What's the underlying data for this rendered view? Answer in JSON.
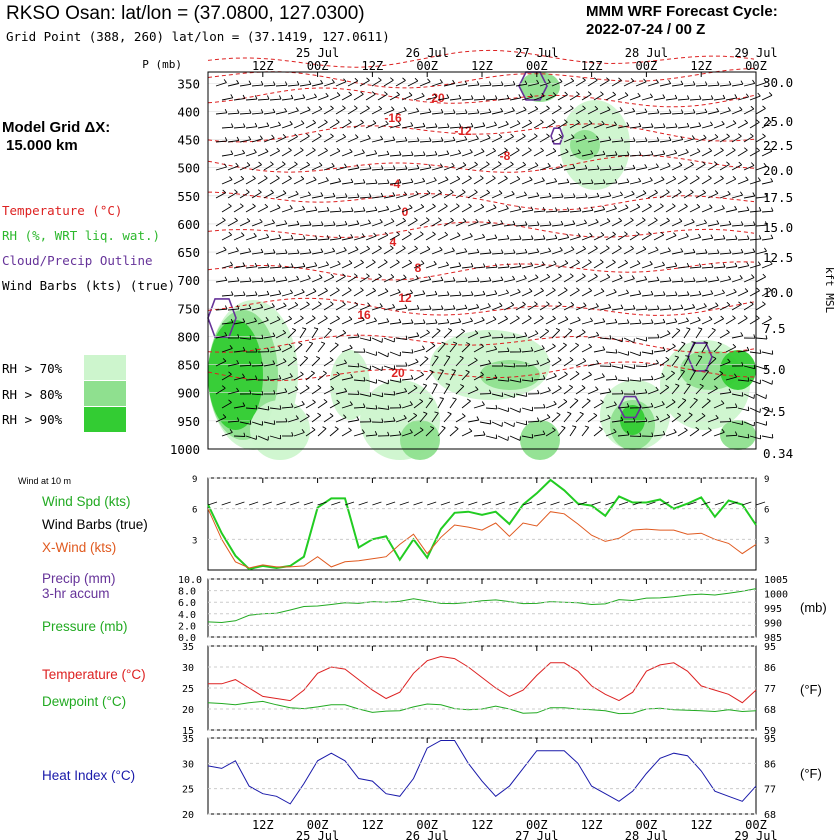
{
  "header": {
    "station": "RKSO Osan:",
    "latlon": "lat/lon = (37.0800, 127.0300)",
    "grid_point": "Grid Point (388, 260) lat/lon = (37.1419, 127.0611)",
    "cycle_title": "MMM WRF Forecast Cycle:",
    "cycle_time": "2022-07-24 / 00  Z"
  },
  "sidebar": {
    "grid_label": "Model Grid ΔX:",
    "grid_value": "15.000 km",
    "legend_temperature": "Temperature (°C)",
    "legend_rh": "RH (%, WRT liq. wat.)",
    "legend_cloud": "Cloud/Precip Outline",
    "legend_wind": "Wind Barbs (kts) (true)",
    "rh_levels": [
      {
        "label": "RH > 70%",
        "color": "#cdf5cd"
      },
      {
        "label": "RH > 80%",
        "color": "#8fe08f"
      },
      {
        "label": "RH > 90%",
        "color": "#33cc33"
      }
    ]
  },
  "colors": {
    "temperature": "#dd2222",
    "rh": "#2db82d",
    "cloud": "#663399",
    "wind_spd": "#22cc22",
    "x_wind": "#e05a20",
    "pressure": "#22aa22",
    "heat_index": "#1a1aaa",
    "dewpoint": "#22aa22"
  },
  "time_axis": {
    "ticks": [
      "12Z",
      "00Z",
      "12Z",
      "00Z",
      "12Z",
      "00Z",
      "12Z",
      "00Z",
      "12Z",
      "00Z"
    ],
    "dates": [
      "25 Jul",
      "26 Jul",
      "27 Jul",
      "28 Jul",
      "29 Jul"
    ]
  },
  "chart_data": [
    {
      "type": "heatmap",
      "name": "cross-section",
      "title": "",
      "ylabel_left": "P (mb)",
      "ylabel_right": "kft MSL",
      "pressure_ticks": [
        "350",
        "400",
        "450",
        "500",
        "550",
        "600",
        "650",
        "700",
        "750",
        "800",
        "850",
        "900",
        "950",
        "1000"
      ],
      "height_ticks": [
        "30.0",
        "25.0",
        "22.5",
        "20.0",
        "17.5",
        "15.0",
        "12.5",
        "10.0",
        "7.5",
        "5.0",
        "2.5",
        "0.34"
      ],
      "temperature_contour_labels": [
        "20",
        "16",
        "12",
        "8",
        "4",
        "0",
        "-4",
        "-8",
        "-12",
        "-16",
        "-20"
      ],
      "temperature_labels_shown": [
        "-20",
        "-16",
        "-12",
        "-8",
        "-4",
        "0",
        "4",
        "8",
        "12",
        "16",
        "20"
      ]
    },
    {
      "type": "line",
      "name": "wind",
      "header": "Wind at 10 m",
      "labels": {
        "wind_spd": "Wind Spd (kts)",
        "barbs": "Wind Barbs (true)",
        "x_wind": "X-Wind (kts)"
      },
      "yticks": [
        "9",
        "6",
        "3"
      ],
      "ylim": [
        0,
        9
      ],
      "x_hours": [
        0,
        3,
        6,
        9,
        12,
        15,
        18,
        21,
        24,
        27,
        30,
        33,
        36,
        39,
        42,
        45,
        48,
        51,
        54,
        57,
        60,
        63,
        66,
        69,
        72,
        75,
        78,
        81,
        84,
        87,
        90,
        93,
        96,
        99,
        102,
        105,
        108,
        111,
        114,
        117,
        120
      ],
      "series": [
        {
          "name": "Wind Spd (kts)",
          "values": [
            6.4,
            3.6,
            1.4,
            0.1,
            0.4,
            0.2,
            0.4,
            1.3,
            6.1,
            7.0,
            7.0,
            2.2,
            3.0,
            3.3,
            1.0,
            3.0,
            1.2,
            4.0,
            5.6,
            5.7,
            5.4,
            5.7,
            4.5,
            6.4,
            7.5,
            8.8,
            7.8,
            6.5,
            6.3,
            5.3,
            7.2,
            6.6,
            6.6,
            6.9,
            6.0,
            6.5,
            7.1,
            5.2,
            6.8,
            6.4,
            4.4
          ]
        },
        {
          "name": "X-Wind (kts)",
          "values": [
            6.0,
            3.0,
            0.8,
            0.2,
            0.5,
            0.3,
            0.3,
            0.4,
            1.3,
            0.3,
            0.8,
            0.9,
            1.1,
            1.3,
            2.5,
            3.5,
            1.6,
            3.2,
            4.4,
            4.2,
            3.9,
            4.6,
            3.3,
            4.6,
            4.3,
            5.7,
            5.5,
            4.5,
            3.4,
            2.8,
            3.1,
            3.9,
            4.0,
            3.9,
            3.9,
            3.5,
            3.6,
            3.0,
            2.6,
            1.6,
            2.5
          ]
        }
      ]
    },
    {
      "type": "line",
      "name": "pressure",
      "labels": {
        "precip": "Precip (mm)",
        "precip_sub": "3-hr accum",
        "pressure": "Pressure (mb)"
      },
      "yticks_left": [
        "10.0",
        "8.0",
        "6.0",
        "4.0",
        "2.0",
        "0.0"
      ],
      "yticks_right": [
        "1005",
        "1000",
        "995",
        "990",
        "985"
      ],
      "unit_right": "(mb)",
      "ylim": [
        985,
        1005
      ],
      "series": [
        {
          "name": "Pressure (mb)",
          "values": [
            990.2,
            990.0,
            990.6,
            992.5,
            993.0,
            993.2,
            994.3,
            995.5,
            995.7,
            996.2,
            996.8,
            996.6,
            997.2,
            997.0,
            997.3,
            998.2,
            997.4,
            996.6,
            996.5,
            996.9,
            997.5,
            997.8,
            997.2,
            996.5,
            996.6,
            997.2,
            997.0,
            996.8,
            996.2,
            996.4,
            997.9,
            997.6,
            998.4,
            998.5,
            998.9,
            999.5,
            999.8,
            999.5,
            1000.1,
            1000.8,
            1001.7
          ]
        }
      ]
    },
    {
      "type": "line",
      "name": "temperature",
      "labels": {
        "temperature": "Temperature (°C)",
        "dewpoint": "Dewpoint (°C)"
      },
      "yticks_left": [
        "35",
        "30",
        "25",
        "20",
        "15"
      ],
      "yticks_right": [
        "95",
        "86",
        "77",
        "68",
        "59"
      ],
      "unit_right": "(°F)",
      "ylim": [
        15,
        35
      ],
      "series": [
        {
          "name": "Temperature (°C)",
          "values": [
            26.0,
            26.0,
            27.0,
            25.0,
            23.0,
            22.5,
            22.0,
            24.5,
            28.5,
            30.0,
            29.5,
            27.0,
            24.5,
            22.5,
            24.0,
            28.5,
            31.5,
            32.5,
            32.0,
            30.0,
            27.5,
            25.0,
            23.0,
            24.5,
            28.0,
            31.0,
            31.0,
            29.0,
            25.5,
            23.5,
            22.0,
            24.0,
            29.0,
            30.5,
            31.0,
            29.0,
            25.5,
            24.5,
            23.5,
            21.5,
            24.5
          ]
        },
        {
          "name": "Dewpoint (°C)",
          "values": [
            21.5,
            21.3,
            21.0,
            21.5,
            21.8,
            21.0,
            20.3,
            20.1,
            20.5,
            21.0,
            21.0,
            20.0,
            19.2,
            19.5,
            19.6,
            20.5,
            21.2,
            21.0,
            20.1,
            19.8,
            20.0,
            20.7,
            20.0,
            19.0,
            19.1,
            20.3,
            20.3,
            20.0,
            19.8,
            19.6,
            18.9,
            19.0,
            20.0,
            20.2,
            19.8,
            19.7,
            19.6,
            19.4,
            19.8,
            19.4,
            19.6
          ]
        }
      ]
    },
    {
      "type": "line",
      "name": "heat-index",
      "labels": {
        "heat_index": "Heat Index (°C)"
      },
      "yticks_left": [
        "35",
        "30",
        "25",
        "20"
      ],
      "yticks_right": [
        "95",
        "86",
        "77",
        "68"
      ],
      "unit_right": "(°F)",
      "ylim": [
        20,
        35
      ],
      "series": [
        {
          "name": "Heat Index (°C)",
          "values": [
            29.5,
            29.0,
            30.5,
            25.5,
            24.0,
            23.5,
            22.0,
            26.0,
            30.5,
            32.0,
            30.5,
            27.0,
            26.5,
            24.0,
            23.5,
            27.0,
            33.0,
            34.5,
            34.5,
            30.0,
            26.5,
            23.5,
            25.5,
            29.0,
            32.5,
            32.5,
            32.5,
            30.0,
            25.5,
            24.0,
            22.5,
            24.5,
            28.0,
            31.0,
            32.0,
            31.5,
            28.5,
            24.5,
            23.5,
            22.5,
            25.5
          ]
        }
      ]
    }
  ]
}
